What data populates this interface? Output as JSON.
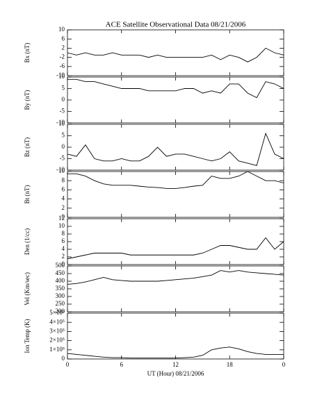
{
  "chart_data": [
    {
      "type": "line",
      "title": "ACE Satellite Observational Data   08/21/2006",
      "ylabel": "Bx (nT)",
      "x": [
        0,
        1,
        2,
        3,
        4,
        5,
        6,
        7,
        8,
        9,
        10,
        11,
        12,
        13,
        14,
        15,
        16,
        17,
        18,
        19,
        20,
        21,
        22,
        23,
        24
      ],
      "values": [
        0,
        -1,
        0,
        -1,
        -1,
        0,
        -1,
        -1,
        -1,
        -2,
        -1,
        -2,
        -2,
        -2,
        -2,
        -2,
        -1,
        -3,
        -1,
        -2,
        -4,
        -2,
        2,
        0,
        -1
      ],
      "xlim": [
        0,
        24
      ],
      "ylim": [
        -10,
        10
      ],
      "yticks": [
        -10,
        -6,
        -2,
        2,
        6,
        10
      ],
      "color": "#000000"
    },
    {
      "type": "line",
      "ylabel": "By (nT)",
      "x": [
        0,
        1,
        2,
        3,
        4,
        5,
        6,
        7,
        8,
        9,
        10,
        11,
        12,
        13,
        14,
        15,
        16,
        17,
        18,
        19,
        20,
        21,
        22,
        23,
        24
      ],
      "values": [
        9,
        9,
        8,
        8,
        7,
        6,
        5,
        5,
        5,
        4,
        4,
        4,
        4,
        5,
        5,
        3,
        4,
        3,
        7,
        7,
        3,
        1,
        8,
        7,
        5
      ],
      "xlim": [
        0,
        24
      ],
      "ylim": [
        -10,
        10
      ],
      "yticks": [
        -10,
        -5,
        0,
        5,
        10
      ],
      "color": "#000000"
    },
    {
      "type": "line",
      "ylabel": "Bz (nT)",
      "x": [
        0,
        1,
        2,
        3,
        4,
        5,
        6,
        7,
        8,
        9,
        10,
        11,
        12,
        13,
        14,
        15,
        16,
        17,
        18,
        19,
        20,
        21,
        22,
        23,
        24
      ],
      "values": [
        -3,
        -4,
        1,
        -5,
        -6,
        -6,
        -5,
        -6,
        -6,
        -4,
        0,
        -4,
        -3,
        -3,
        -4,
        -5,
        -6,
        -5,
        -2,
        -6,
        -7,
        -8,
        6,
        -3,
        -5
      ],
      "xlim": [
        0,
        24
      ],
      "ylim": [
        -10,
        10
      ],
      "yticks": [
        -10,
        -5,
        0,
        5,
        10
      ],
      "color": "#000000"
    },
    {
      "type": "line",
      "ylabel": "Bt (nT)",
      "x": [
        0,
        1,
        2,
        3,
        4,
        5,
        6,
        7,
        8,
        9,
        10,
        11,
        12,
        13,
        14,
        15,
        16,
        17,
        18,
        19,
        20,
        21,
        22,
        23,
        24
      ],
      "values": [
        9.5,
        9.5,
        9,
        8,
        7.3,
        7,
        7,
        7,
        6.8,
        6.6,
        6.5,
        6.3,
        6.3,
        6.5,
        6.8,
        7,
        9,
        8.5,
        8.5,
        9,
        10,
        9,
        8,
        8,
        7.5
      ],
      "xlim": [
        0,
        24
      ],
      "ylim": [
        0,
        10
      ],
      "yticks": [
        0,
        2,
        4,
        6,
        8,
        10
      ],
      "color": "#000000"
    },
    {
      "type": "line",
      "ylabel": "Den (1/cc)",
      "x": [
        0,
        1,
        2,
        3,
        4,
        5,
        6,
        7,
        8,
        9,
        10,
        11,
        12,
        13,
        14,
        15,
        16,
        17,
        18,
        19,
        20,
        21,
        22,
        23,
        24
      ],
      "values": [
        1.5,
        2,
        2.5,
        3,
        3,
        3,
        3,
        2.5,
        2.5,
        2.5,
        2.5,
        2.5,
        2.5,
        2.5,
        2.5,
        3,
        4,
        5,
        5,
        4.5,
        4,
        4,
        7,
        4,
        6
      ],
      "xlim": [
        0,
        24
      ],
      "ylim": [
        0,
        12
      ],
      "yticks": [
        0,
        2,
        4,
        6,
        8,
        10,
        12
      ],
      "color": "#000000"
    },
    {
      "type": "line",
      "ylabel": "Vel (Km/sec)",
      "x": [
        0,
        1,
        2,
        3,
        4,
        5,
        6,
        7,
        8,
        9,
        10,
        11,
        12,
        13,
        14,
        15,
        16,
        17,
        18,
        19,
        20,
        21,
        22,
        23,
        24
      ],
      "values": [
        380,
        385,
        395,
        410,
        425,
        410,
        405,
        400,
        400,
        400,
        400,
        405,
        410,
        415,
        420,
        430,
        440,
        470,
        460,
        470,
        460,
        455,
        450,
        445,
        440
      ],
      "xlim": [
        0,
        24
      ],
      "ylim": [
        200,
        500
      ],
      "yticks": [
        200,
        250,
        300,
        350,
        400,
        450,
        500
      ],
      "color": "#000000"
    },
    {
      "type": "line",
      "ylabel": "Ion Temp (K)",
      "xlabel": "UT (Hour)   08/21/2006",
      "x": [
        0,
        1,
        2,
        3,
        4,
        5,
        6,
        7,
        8,
        9,
        10,
        11,
        12,
        13,
        14,
        15,
        16,
        17,
        18,
        19,
        20,
        21,
        22,
        23,
        24
      ],
      "values": [
        60000,
        50000,
        40000,
        30000,
        20000,
        15000,
        15000,
        10000,
        10000,
        10000,
        10000,
        10000,
        10000,
        15000,
        20000,
        40000,
        100000,
        120000,
        130000,
        110000,
        80000,
        60000,
        50000,
        50000,
        50000
      ],
      "xlim": [
        0,
        24
      ],
      "ylim": [
        0,
        500000
      ],
      "yticks": [
        0,
        {
          "value": 100000,
          "label": "1×10⁵"
        },
        {
          "value": 200000,
          "label": "2×10⁵"
        },
        {
          "value": 300000,
          "label": "3×10⁵"
        },
        {
          "value": 400000,
          "label": "4×10⁵"
        },
        {
          "value": 500000,
          "label": "5×10⁵"
        }
      ],
      "xticks": [
        0,
        6,
        12,
        18,
        {
          "value": 24,
          "label": "0"
        }
      ],
      "color": "#000000"
    }
  ]
}
